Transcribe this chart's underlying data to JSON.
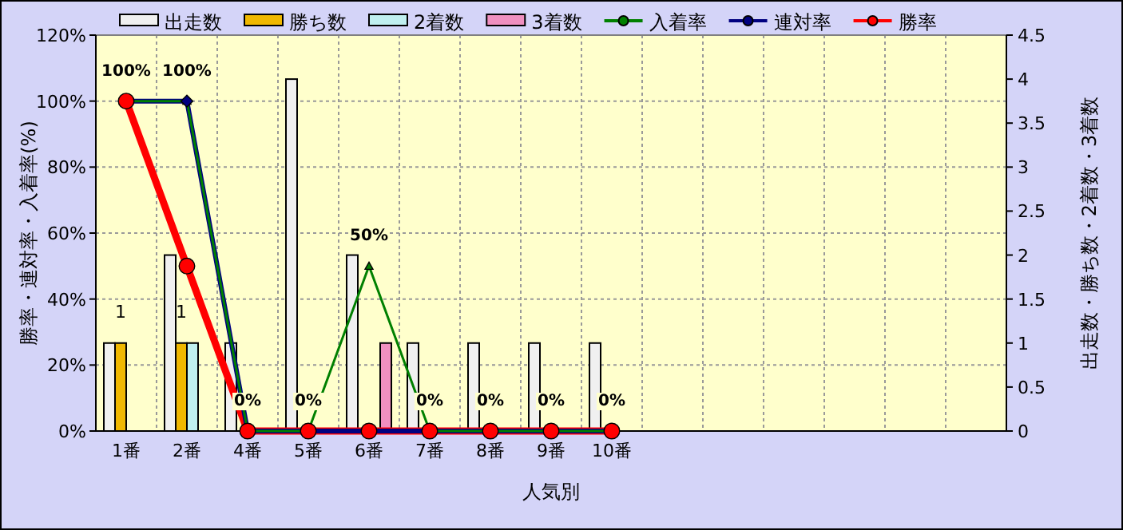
{
  "chart_data": {
    "type": "bar",
    "xlabel": "人気別",
    "ylabel": "勝率・連対率・入着率(%)",
    "y2label": "出走数・勝ち数・2着数・3着数",
    "categories": [
      "1番",
      "2番",
      "4番",
      "5番",
      "6番",
      "7番",
      "8番",
      "9番",
      "10番",
      null,
      null,
      null,
      null,
      null,
      null
    ],
    "series": [
      {
        "name": "出走数",
        "axis": "y2",
        "color": "#f0f0f0",
        "values": [
          1,
          2,
          1,
          4,
          2,
          1,
          1,
          1,
          1,
          null,
          null,
          null,
          null,
          null,
          null
        ]
      },
      {
        "name": "勝ち数",
        "axis": "y2",
        "color": "#f0b800",
        "values": [
          1,
          1,
          0,
          0,
          0,
          0,
          0,
          0,
          0,
          null,
          null,
          null,
          null,
          null,
          null
        ],
        "value_labels": [
          "1",
          "1",
          null,
          null,
          null,
          null,
          null,
          null,
          null,
          null,
          null,
          null,
          null,
          null,
          null
        ]
      },
      {
        "name": "2着数",
        "axis": "y2",
        "color": "#c0f0f0",
        "values": [
          0,
          1,
          0,
          0,
          0,
          0,
          0,
          0,
          0,
          null,
          null,
          null,
          null,
          null,
          null
        ]
      },
      {
        "name": "3着数",
        "axis": "y2",
        "color": "#f090c0",
        "values": [
          0,
          0,
          0,
          0,
          1,
          0,
          0,
          0,
          0,
          null,
          null,
          null,
          null,
          null,
          null
        ]
      },
      {
        "name": "入着率",
        "type": "line",
        "marker": "triangle",
        "color": "#008000",
        "values": [
          100,
          100,
          0,
          0,
          50,
          0,
          0,
          0,
          0,
          null,
          null,
          null,
          null,
          null,
          null
        ],
        "value_labels": [
          "100%",
          "100%",
          "0%",
          "0%",
          "50%",
          "0%",
          "0%",
          "0%",
          "0%",
          null,
          null,
          null,
          null,
          null,
          null
        ]
      },
      {
        "name": "連対率",
        "type": "line",
        "marker": "diamond",
        "color": "#000080",
        "values": [
          100,
          100,
          0,
          0,
          0,
          0,
          0,
          0,
          0,
          null,
          null,
          null,
          null,
          null,
          null
        ]
      },
      {
        "name": "勝率",
        "type": "line",
        "marker": "circle",
        "color": "#ff0000",
        "values": [
          100,
          50,
          0,
          0,
          0,
          0,
          0,
          0,
          0,
          null,
          null,
          null,
          null,
          null,
          null
        ]
      }
    ],
    "ylim": [
      0,
      120
    ],
    "yticks": [
      {
        "value": 0,
        "label": "0%"
      },
      {
        "value": 20,
        "label": "20%"
      },
      {
        "value": 40,
        "label": "40%"
      },
      {
        "value": 60,
        "label": "60%"
      },
      {
        "value": 80,
        "label": "80%"
      },
      {
        "value": 100,
        "label": "100%"
      },
      {
        "value": 120,
        "label": "120%"
      }
    ],
    "y2lim": [
      0,
      4.5
    ],
    "y2ticks": [
      0,
      0.5,
      1,
      1.5,
      2,
      2.5,
      3,
      3.5,
      4,
      4.5
    ],
    "grid": true,
    "legend": "top"
  }
}
